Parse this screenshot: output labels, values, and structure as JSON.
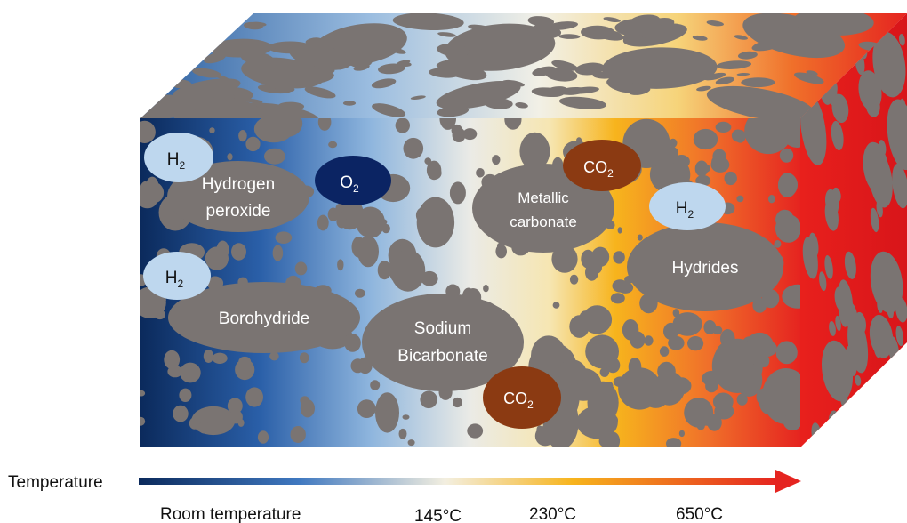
{
  "colors": {
    "cold": "#0b2a5c",
    "mid_blue": "#3f78c0",
    "neutral": "#f3efe0",
    "warm": "#f7b41d",
    "hot": "#e52420",
    "particle": "#7a7472",
    "h2_fill": "#bed7ee",
    "o2_fill": "#0b2463",
    "co2_fill": "#8b3a12"
  },
  "compounds": {
    "hydrogen_peroxide": [
      "Hydrogen",
      "peroxide"
    ],
    "borohydride": "Borohydride",
    "sodium_bicarbonate": [
      "Sodium",
      "Bicarbonate"
    ],
    "metallic_carbonate": [
      "Metallic",
      "carbonate"
    ],
    "hydrides": "Hydrides"
  },
  "gases": {
    "h2_base": "H",
    "h2_sub": "2",
    "o2_base": "O",
    "o2_sub": "2",
    "co2_base": "CO",
    "co2_sub": "2"
  },
  "axis": {
    "label": "Temperature",
    "ticks": [
      "Room temperature",
      "145°C",
      "230°C",
      "650°C"
    ]
  }
}
